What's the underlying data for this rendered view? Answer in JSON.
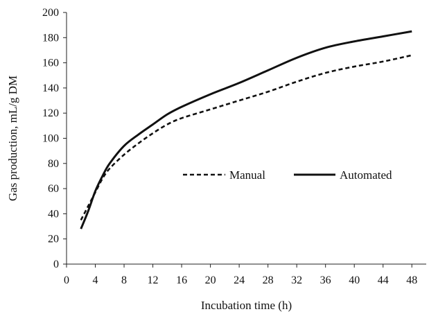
{
  "chart_data": {
    "type": "line",
    "title": "",
    "xlabel": "Incubation time (h)",
    "ylabel": "Gas production, mL/g DM",
    "xlim": [
      0,
      50
    ],
    "ylim": [
      0,
      200
    ],
    "xticks": [
      0,
      4,
      8,
      12,
      16,
      20,
      24,
      28,
      32,
      36,
      40,
      44,
      48
    ],
    "yticks": [
      0,
      20,
      40,
      60,
      80,
      100,
      120,
      140,
      160,
      180,
      200
    ],
    "grid": false,
    "legend_position": "center-right",
    "series": [
      {
        "name": "Manual",
        "style": "dashed",
        "color": "#111111",
        "x": [
          2,
          3,
          4,
          5,
          6,
          8,
          10,
          12,
          14,
          16,
          20,
          24,
          28,
          32,
          36,
          40,
          44,
          48
        ],
        "y": [
          35,
          46,
          57,
          68,
          76,
          87,
          96,
          104,
          111,
          116,
          123,
          130,
          137,
          145,
          152,
          157,
          161,
          166
        ]
      },
      {
        "name": "Automated",
        "style": "solid",
        "color": "#111111",
        "x": [
          2,
          3,
          4,
          5,
          6,
          8,
          10,
          12,
          14,
          16,
          20,
          24,
          28,
          32,
          36,
          40,
          44,
          48
        ],
        "y": [
          28,
          42,
          58,
          70,
          80,
          94,
          103,
          111,
          119,
          125,
          135,
          144,
          154,
          164,
          172,
          177,
          181,
          185
        ]
      }
    ]
  }
}
